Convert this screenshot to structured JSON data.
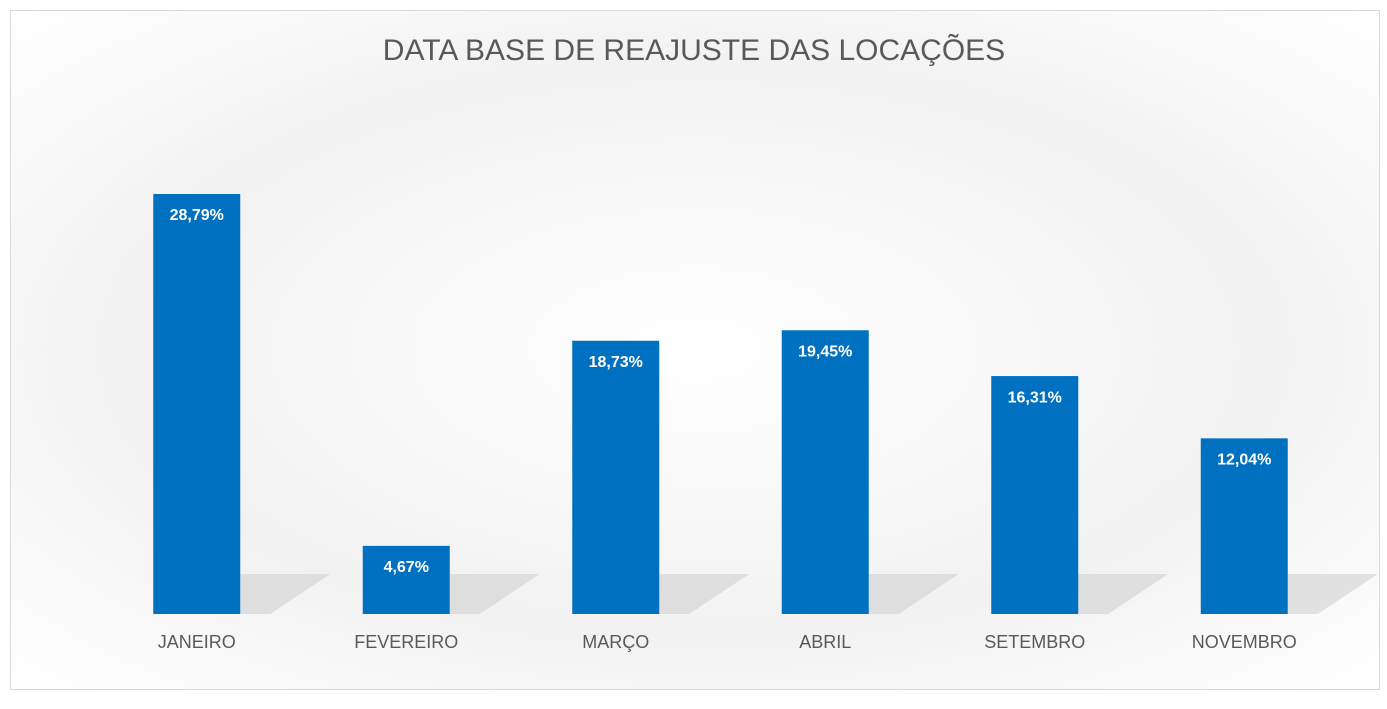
{
  "chart_data": {
    "type": "bar",
    "title": "DATA BASE DE REAJUSTE DAS LOCAÇÕES",
    "categories": [
      "JANEIRO",
      "FEVEREIRO",
      "MARÇO",
      "ABRIL",
      "SETEMBRO",
      "NOVEMBRO"
    ],
    "values": [
      28.79,
      4.67,
      18.73,
      19.45,
      16.31,
      12.04
    ],
    "value_labels": [
      "28,79%",
      "4,67%",
      "18,73%",
      "19,45%",
      "16,31%",
      "12,04%"
    ],
    "color": "#0070c0"
  }
}
